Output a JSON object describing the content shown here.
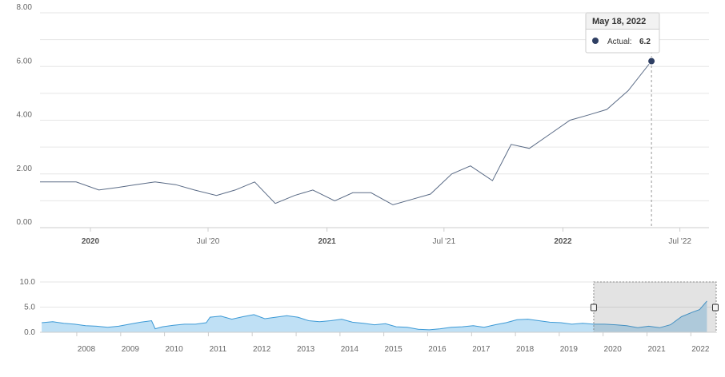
{
  "chart_data": [
    {
      "type": "line",
      "ylim": [
        0,
        8
      ],
      "y_ticks": [
        "8.00",
        "6.00",
        "4.00",
        "2.00",
        "0.00"
      ],
      "x_ticks": [
        {
          "label": "2020",
          "bold": true,
          "date": "2020-01-01"
        },
        {
          "label": "Jul '20",
          "bold": false,
          "date": "2020-07-01"
        },
        {
          "label": "2021",
          "bold": true,
          "date": "2021-01-01"
        },
        {
          "label": "Jul '21",
          "bold": false,
          "date": "2021-07-01"
        },
        {
          "label": "2022",
          "bold": true,
          "date": "2022-01-01"
        },
        {
          "label": "Jul '22",
          "bold": false,
          "date": "2022-07-01"
        }
      ],
      "xlim": [
        "2019-10-15",
        "2022-08-15"
      ],
      "grid": true,
      "series": [
        {
          "color": "#5a6b86",
          "points": [
            [
              "2019-10-15",
              1.7
            ],
            [
              "2019-11-12",
              1.7
            ],
            [
              "2019-12-10",
              1.7
            ],
            [
              "2020-01-14",
              1.4
            ],
            [
              "2020-02-13",
              1.5
            ],
            [
              "2020-03-11",
              1.6
            ],
            [
              "2020-04-10",
              1.7
            ],
            [
              "2020-05-12",
              1.6
            ],
            [
              "2020-06-10",
              1.4
            ],
            [
              "2020-07-14",
              1.2
            ],
            [
              "2020-08-12",
              1.4
            ],
            [
              "2020-09-11",
              1.7
            ],
            [
              "2020-10-13",
              0.9
            ],
            [
              "2020-11-12",
              1.2
            ],
            [
              "2020-12-10",
              1.4
            ],
            [
              "2021-01-13",
              1.0
            ],
            [
              "2021-02-10",
              1.3
            ],
            [
              "2021-03-10",
              1.3
            ],
            [
              "2021-04-13",
              0.85
            ],
            [
              "2021-05-12",
              1.05
            ],
            [
              "2021-06-10",
              1.25
            ],
            [
              "2021-07-13",
              2.0
            ],
            [
              "2021-08-11",
              2.3
            ],
            [
              "2021-09-14",
              1.75
            ],
            [
              "2021-10-13",
              3.1
            ],
            [
              "2021-11-10",
              2.95
            ],
            [
              "2021-12-10",
              3.45
            ],
            [
              "2022-01-12",
              4.0
            ],
            [
              "2022-02-10",
              4.2
            ],
            [
              "2022-03-10",
              4.4
            ],
            [
              "2022-04-12",
              5.1
            ],
            [
              "2022-05-18",
              6.2
            ]
          ]
        }
      ],
      "tooltip": {
        "date": "May 18, 2022",
        "series_label": "Actual:",
        "value": "6.2",
        "marker_color": "#2f3f63"
      }
    },
    {
      "type": "area",
      "role": "navigator",
      "ylim": [
        0,
        10
      ],
      "y_ticks": [
        "10.0",
        "5.0",
        "0.0"
      ],
      "x_ticks": [
        "2008",
        "2009",
        "2010",
        "2011",
        "2012",
        "2013",
        "2014",
        "2015",
        "2016",
        "2017",
        "2018",
        "2019",
        "2020",
        "2021",
        "2022"
      ],
      "xlim": [
        "2007-03-01",
        "2022-06-01"
      ],
      "selected_range": [
        "2019-10-15",
        "2022-08-15"
      ],
      "series": [
        {
          "color": "#3d9ad6",
          "fill": "#bfe0f5",
          "points": [
            [
              "2007-03",
              1.9
            ],
            [
              "2007-06",
              2.1
            ],
            [
              "2007-09",
              1.8
            ],
            [
              "2007-12",
              1.6
            ],
            [
              "2008-03",
              1.3
            ],
            [
              "2008-06",
              1.2
            ],
            [
              "2008-09",
              1.0
            ],
            [
              "2008-12",
              1.2
            ],
            [
              "2009-03",
              1.6
            ],
            [
              "2009-06",
              2.0
            ],
            [
              "2009-09",
              2.3
            ],
            [
              "2009-10",
              0.7
            ],
            [
              "2009-12",
              1.1
            ],
            [
              "2010-03",
              1.4
            ],
            [
              "2010-06",
              1.6
            ],
            [
              "2010-09",
              1.6
            ],
            [
              "2010-12",
              1.9
            ],
            [
              "2011-01",
              3.0
            ],
            [
              "2011-04",
              3.2
            ],
            [
              "2011-07",
              2.6
            ],
            [
              "2011-10",
              3.1
            ],
            [
              "2012-01",
              3.5
            ],
            [
              "2012-04",
              2.7
            ],
            [
              "2012-07",
              3.0
            ],
            [
              "2012-10",
              3.3
            ],
            [
              "2013-01",
              3.0
            ],
            [
              "2013-04",
              2.3
            ],
            [
              "2013-07",
              2.1
            ],
            [
              "2013-10",
              2.3
            ],
            [
              "2014-01",
              2.6
            ],
            [
              "2014-04",
              2.0
            ],
            [
              "2014-07",
              1.8
            ],
            [
              "2014-10",
              1.5
            ],
            [
              "2015-01",
              1.7
            ],
            [
              "2015-04",
              1.1
            ],
            [
              "2015-07",
              1.0
            ],
            [
              "2015-10",
              0.6
            ],
            [
              "2016-01",
              0.5
            ],
            [
              "2016-04",
              0.7
            ],
            [
              "2016-07",
              1.0
            ],
            [
              "2016-10",
              1.1
            ],
            [
              "2017-01",
              1.3
            ],
            [
              "2017-04",
              1.0
            ],
            [
              "2017-07",
              1.5
            ],
            [
              "2017-10",
              1.9
            ],
            [
              "2018-01",
              2.5
            ],
            [
              "2018-04",
              2.6
            ],
            [
              "2018-07",
              2.3
            ],
            [
              "2018-10",
              2.0
            ],
            [
              "2019-01",
              1.9
            ],
            [
              "2019-04",
              1.6
            ],
            [
              "2019-07",
              1.8
            ],
            [
              "2019-10",
              1.6
            ],
            [
              "2020-01",
              1.6
            ],
            [
              "2020-04",
              1.5
            ],
            [
              "2020-07",
              1.3
            ],
            [
              "2020-10",
              0.9
            ],
            [
              "2021-01",
              1.2
            ],
            [
              "2021-04",
              0.9
            ],
            [
              "2021-07",
              1.5
            ],
            [
              "2021-10",
              3.1
            ],
            [
              "2022-01",
              4.0
            ],
            [
              "2022-03",
              4.5
            ],
            [
              "2022-05",
              6.2
            ]
          ]
        }
      ]
    }
  ]
}
